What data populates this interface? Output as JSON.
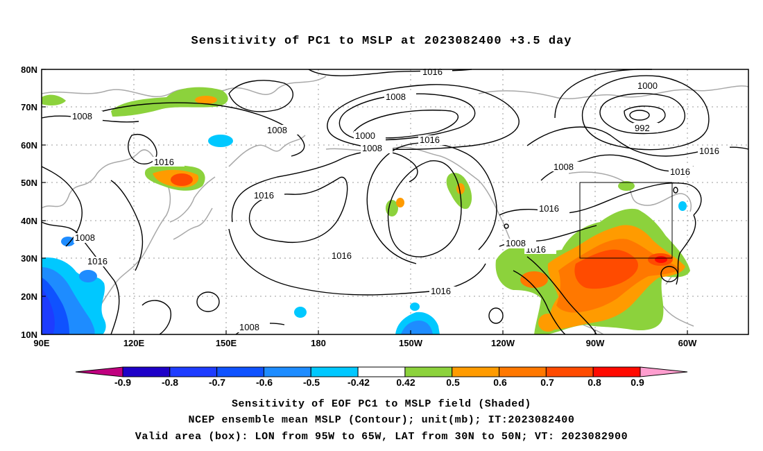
{
  "title": "Sensitivity of PC1 to MSLP at 2023082400 +3.5 day",
  "map": {
    "lat_labels": [
      "10N",
      "20N",
      "30N",
      "40N",
      "50N",
      "60N",
      "70N",
      "80N"
    ],
    "lon_labels": [
      "90E",
      "120E",
      "150E",
      "180",
      "150W",
      "120W",
      "90W",
      "60W"
    ],
    "contour_labels": [
      "1016",
      "1008",
      "1008",
      "1000",
      "1008",
      "1016",
      "1016",
      "1016",
      "1008",
      "1016",
      "1000",
      "992",
      "1016",
      "1016",
      "1016",
      "1016",
      "1008",
      "1008",
      "1008",
      "1016",
      "1016",
      "1008"
    ],
    "colors": {
      "neg_0_9": "#c0007f",
      "neg_0_8": "#1e00c8",
      "neg_0_7": "#1e3cff",
      "neg_0_6": "#0f52ff",
      "neg_0_5": "#1e8cff",
      "neg_0_42": "#00c8ff",
      "pos_0_42": "#8cd23c",
      "pos_0_5": "#ff9b00",
      "pos_0_6": "#ff7800",
      "pos_0_7": "#ff4b00",
      "pos_0_8": "#ff0a00",
      "pos_0_9": "#ff9ecf"
    }
  },
  "colorbar": {
    "labels": [
      "-0.9",
      "-0.8",
      "-0.7",
      "-0.6",
      "-0.5",
      "-0.42",
      "0.42",
      "0.5",
      "0.6",
      "0.7",
      "0.8",
      "0.9"
    ],
    "colors": [
      "#c0007f",
      "#1e00c8",
      "#1e3cff",
      "#0f52ff",
      "#1e8cff",
      "#00c8ff",
      "#ffffff",
      "#8cd23c",
      "#ff9b00",
      "#ff7800",
      "#ff4b00",
      "#ff0a00",
      "#ff9ecf"
    ]
  },
  "footer": {
    "line1": "Sensitivity of EOF PC1 to MSLP field (Shaded)",
    "line2": "NCEP ensemble mean MSLP (Contour); unit(mb); IT:2023082400",
    "line3": "Valid area (box): LON from 95W to 65W, LAT from 30N to 50N; VT: 2023082900"
  }
}
